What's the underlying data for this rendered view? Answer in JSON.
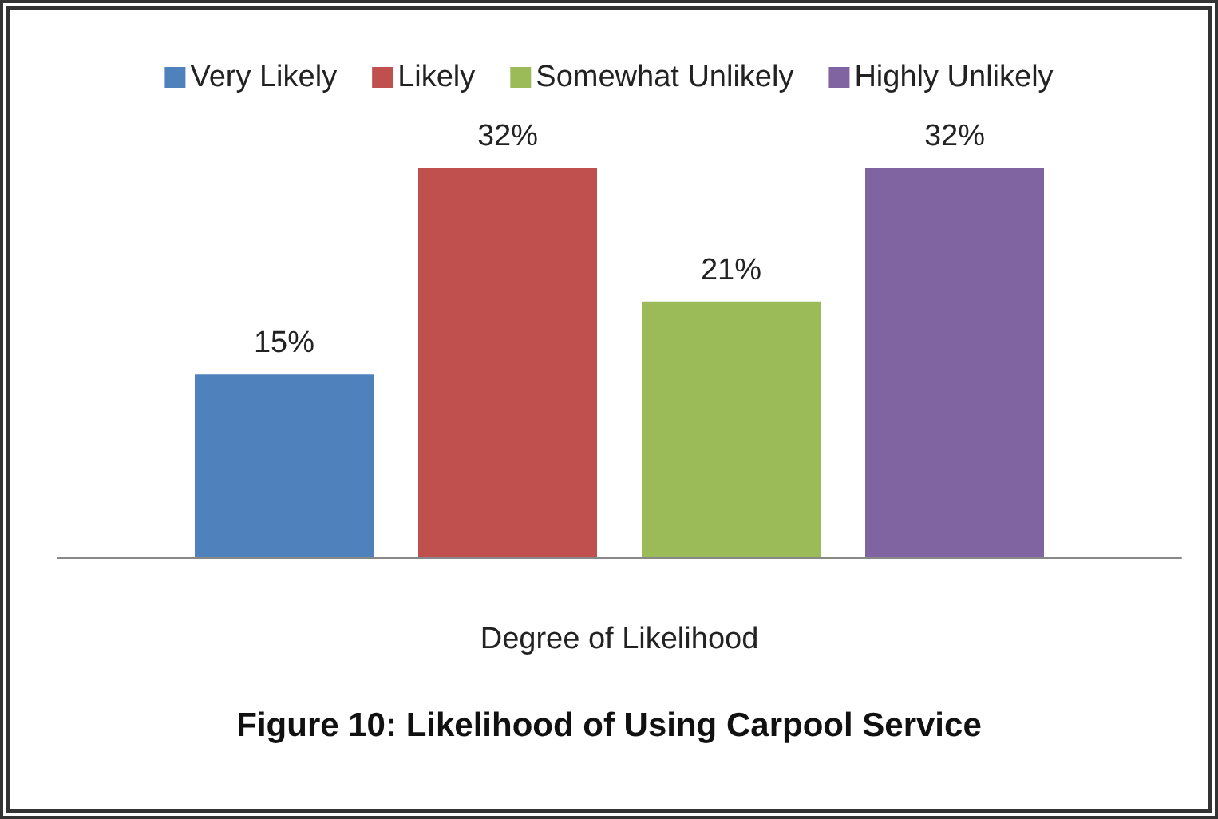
{
  "chart_data": {
    "type": "bar",
    "title": "Figure 10: Likelihood of Using Carpool Service",
    "xlabel": "Degree of Likelihood",
    "categories": [
      null
    ],
    "legend": "top",
    "series": [
      {
        "name": "Very Likely",
        "color": "#4f81bd",
        "values": [
          15
        ],
        "value_labels": [
          "15%"
        ]
      },
      {
        "name": "Likely",
        "color": "#c0504d",
        "values": [
          32
        ],
        "value_labels": [
          "32%"
        ]
      },
      {
        "name": "Somewhat Unlikely",
        "color": "#9bbb59",
        "values": [
          21
        ],
        "value_labels": [
          "21%"
        ]
      },
      {
        "name": "Highly Unlikely",
        "color": "#8064a2",
        "values": [
          32
        ],
        "value_labels": [
          "32%"
        ]
      }
    ]
  }
}
